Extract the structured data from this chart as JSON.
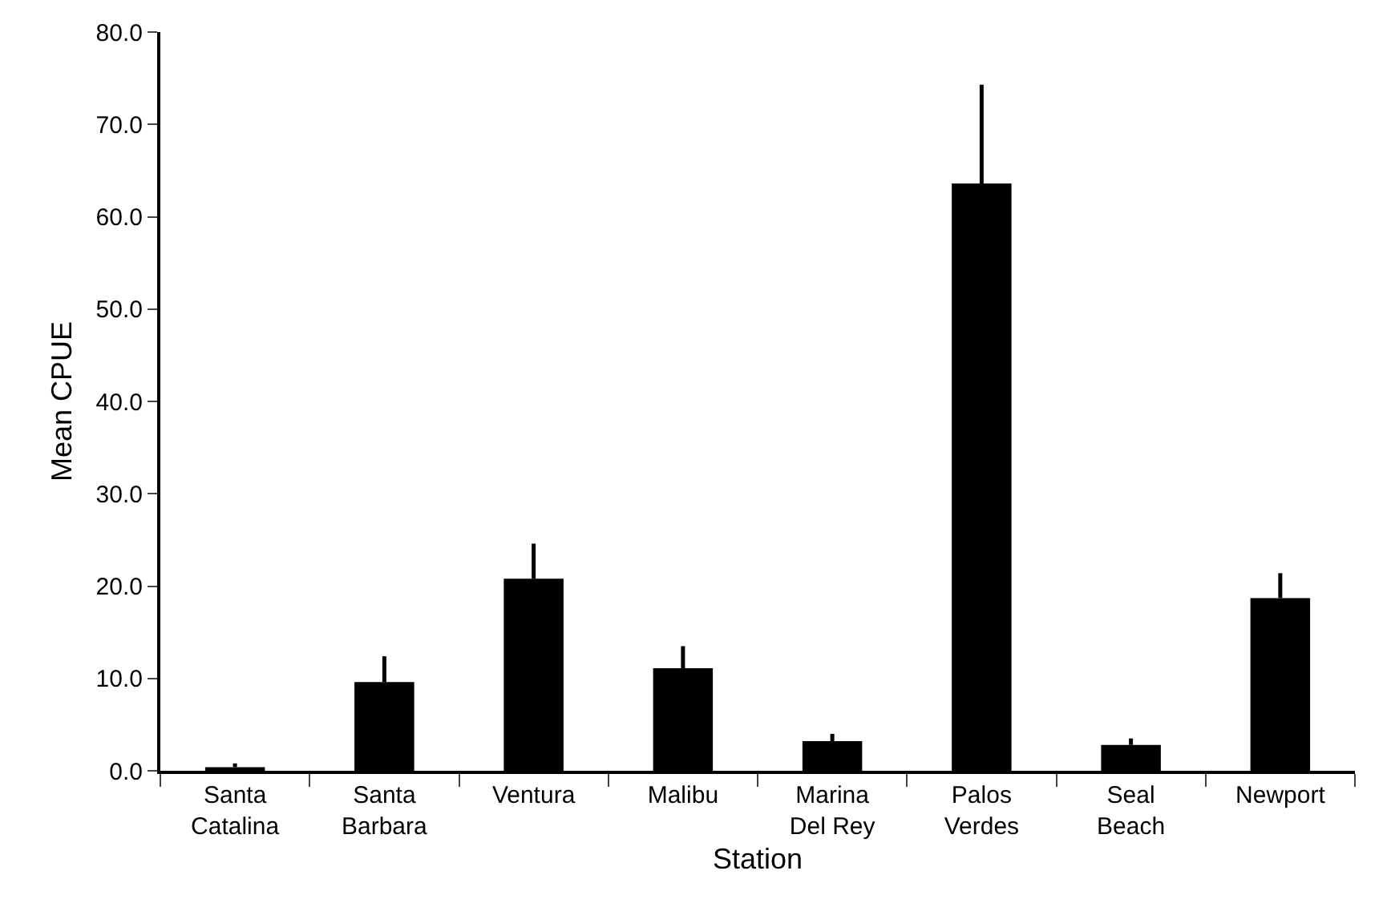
{
  "chart_data": {
    "type": "bar",
    "xlabel": "Station",
    "ylabel": "Mean CPUE",
    "categories": [
      "Santa Catalina",
      "Santa Barbara",
      "Ventura",
      "Malibu",
      "Marina Del Rey",
      "Palos Verdes",
      "Seal Beach",
      "Newport"
    ],
    "series": [
      {
        "color": "#000000",
        "values": [
          0.4,
          9.6,
          20.8,
          11.1,
          3.2,
          63.6,
          2.8,
          18.7
        ],
        "errors": [
          [
            0.4,
            0.8
          ],
          [
            9.6,
            12.4
          ],
          [
            20.8,
            24.6
          ],
          [
            11.1,
            13.5
          ],
          [
            3.2,
            4.0
          ],
          [
            63.6,
            74.3
          ],
          [
            2.8,
            3.5
          ],
          [
            18.7,
            21.4
          ]
        ]
      }
    ],
    "ylim": [
      0,
      80
    ],
    "yticks": [
      {
        "value": 0,
        "label": "0.0"
      },
      {
        "value": 10,
        "label": "10.0"
      },
      {
        "value": 20,
        "label": "20.0"
      },
      {
        "value": 30,
        "label": "30.0"
      },
      {
        "value": 40,
        "label": "40.0"
      },
      {
        "value": 50,
        "label": "50.0"
      },
      {
        "value": 60,
        "label": "60.0"
      },
      {
        "value": 70,
        "label": "70.0"
      },
      {
        "value": 80,
        "label": "80.0"
      }
    ]
  }
}
